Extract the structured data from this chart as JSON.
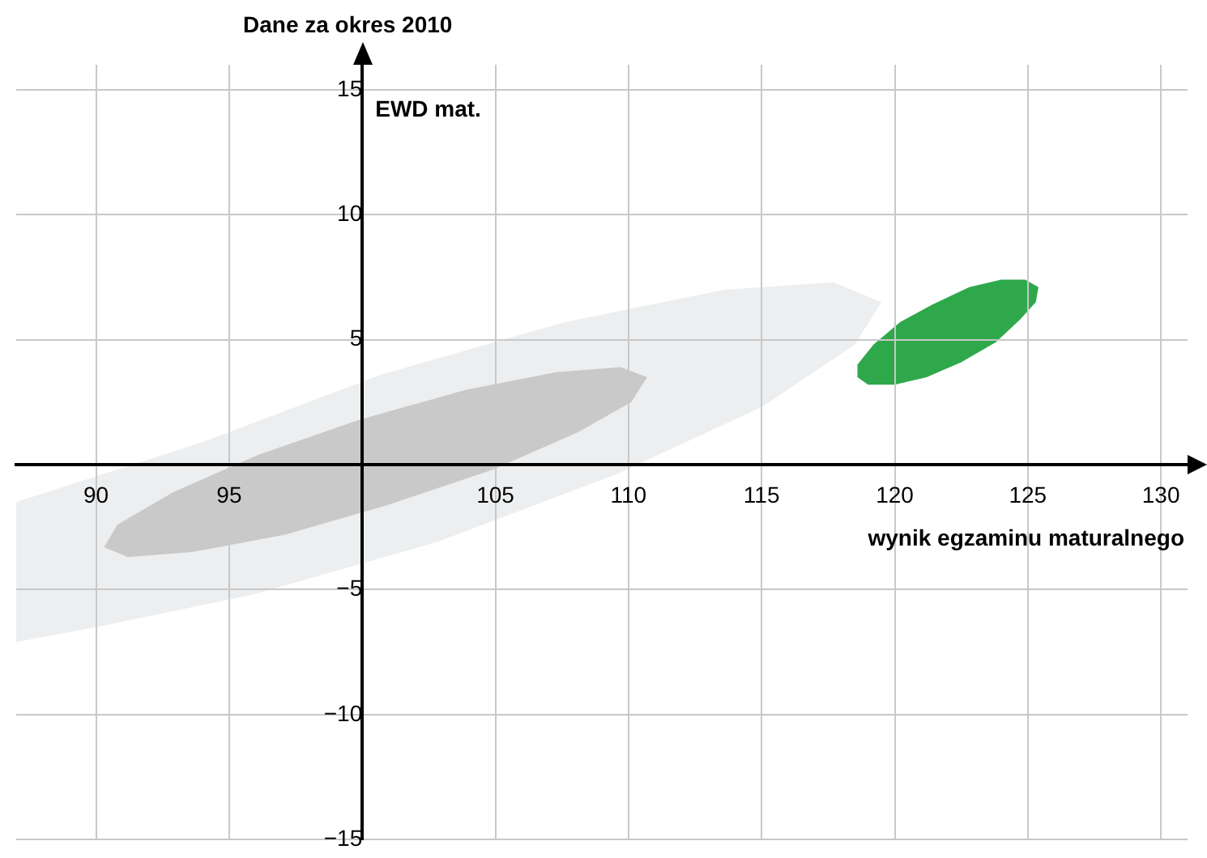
{
  "chart_data": {
    "type": "area",
    "title": "Dane za okres 2010",
    "xlabel": "wynik egzaminu maturalnego",
    "ylabel": "EWD mat.",
    "xlim": [
      87,
      131
    ],
    "ylim": [
      -15,
      16
    ],
    "xticks": [
      90,
      95,
      {
        "value": 100,
        "label": null
      },
      105,
      110,
      115,
      120,
      125,
      130
    ],
    "yticks": [
      {
        "value": -15,
        "label": "−15"
      },
      {
        "value": -10,
        "label": "−10"
      },
      {
        "value": -5,
        "label": "−5"
      },
      {
        "value": 0,
        "label": null
      },
      5,
      10,
      15
    ],
    "grid": true,
    "legend": false,
    "series": [
      {
        "type": "area",
        "color": "#eceef0",
        "x": [
          119.5,
          118.5,
          115.0,
          109.5,
          102.8,
          95.9,
          90.0,
          87.0,
          87.0,
          94.0,
          100.7,
          107.6,
          113.6,
          117.7
        ],
        "values": [
          6.5,
          4.8,
          2.3,
          -0.4,
          -3.1,
          -5.2,
          -6.5,
          -7.1,
          -1.5,
          0.9,
          3.6,
          5.7,
          7.0,
          7.3
        ]
      },
      {
        "type": "area",
        "color": "#c9c9c9",
        "x": [
          110.7,
          110.1,
          108.1,
          104.9,
          101.0,
          97.1,
          93.6,
          91.2,
          90.3,
          90.8,
          92.9,
          96.1,
          99.9,
          103.9,
          107.3,
          109.7
        ],
        "values": [
          3.5,
          2.5,
          1.3,
          -0.2,
          -1.6,
          -2.8,
          -3.5,
          -3.7,
          -3.3,
          -2.4,
          -1.1,
          0.4,
          1.8,
          3.0,
          3.7,
          3.9
        ]
      },
      {
        "type": "area",
        "color": "#2ea84a",
        "x": [
          125.4,
          125.3,
          124.7,
          123.8,
          122.5,
          121.2,
          120.0,
          119.0,
          118.6,
          118.6,
          119.2,
          120.2,
          121.4,
          122.8,
          124.0,
          124.9
        ],
        "values": [
          7.1,
          6.5,
          5.8,
          4.9,
          4.1,
          3.5,
          3.2,
          3.2,
          3.5,
          4.0,
          4.8,
          5.7,
          6.4,
          7.1,
          7.4,
          7.4
        ]
      }
    ]
  }
}
